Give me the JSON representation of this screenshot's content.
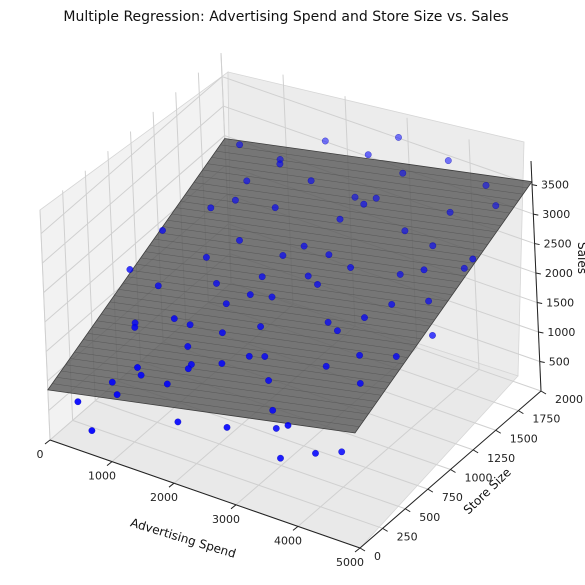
{
  "chart_data": {
    "type": "scatter",
    "title": "Multiple Regression: Advertising Spend and Store Size vs. Sales",
    "xlabel": "Advertising Spend",
    "ylabel": "Store Size",
    "zlabel": "Sales",
    "xlim": [
      0,
      5000
    ],
    "ylim": [
      0,
      2000
    ],
    "zlim": [
      0,
      3900
    ],
    "x_ticks": [
      "0",
      "1000",
      "2000",
      "3000",
      "4000",
      "5000"
    ],
    "y_ticks": [
      "0",
      "250",
      "500",
      "750",
      "1000",
      "1250",
      "1500",
      "1750",
      "2000"
    ],
    "z_ticks": [
      "500",
      "1000",
      "1500",
      "2000",
      "2500",
      "3000",
      "3500"
    ],
    "point_color": "#0000ff",
    "plane_color": "#555555",
    "regression_plane": {
      "corners": [
        {
          "x": 0,
          "y": 0,
          "z": 850
        },
        {
          "x": 5000,
          "y": 0,
          "z": 1950
        },
        {
          "x": 5000,
          "y": 2000,
          "z": 3550
        },
        {
          "x": 0,
          "y": 2000,
          "z": 2450
        }
      ]
    },
    "series": [
      {
        "points": [
          [
            300,
            120,
            600
          ],
          [
            600,
            60,
            300
          ],
          [
            900,
            150,
            900
          ],
          [
            1100,
            250,
            1300
          ],
          [
            1000,
            350,
            1000
          ],
          [
            700,
            500,
            1500
          ],
          [
            1200,
            600,
            1700
          ],
          [
            1500,
            300,
            1100
          ],
          [
            1300,
            700,
            1500
          ],
          [
            1700,
            400,
            1300
          ],
          [
            1900,
            650,
            1650
          ],
          [
            2100,
            500,
            1400
          ],
          [
            2300,
            800,
            1700
          ],
          [
            2000,
            900,
            2000
          ],
          [
            2500,
            700,
            1400
          ],
          [
            2700,
            600,
            1200
          ],
          [
            2900,
            500,
            900
          ],
          [
            3100,
            400,
            800
          ],
          [
            3300,
            300,
            500
          ],
          [
            3600,
            200,
            1300
          ],
          [
            3800,
            350,
            700
          ],
          [
            4000,
            500,
            600
          ],
          [
            800,
            1300,
            2500
          ],
          [
            1100,
            1500,
            2800
          ],
          [
            1400,
            1200,
            2300
          ],
          [
            1700,
            1400,
            2700
          ],
          [
            2000,
            1600,
            3000
          ],
          [
            2300,
            1300,
            2400
          ],
          [
            2600,
            1500,
            2700
          ],
          [
            2900,
            1700,
            2900
          ],
          [
            3200,
            1800,
            3300
          ],
          [
            3500,
            1600,
            2700
          ],
          [
            3800,
            1900,
            3600
          ],
          [
            4100,
            1700,
            3100
          ],
          [
            4400,
            1900,
            3400
          ],
          [
            4700,
            1800,
            3300
          ],
          [
            4600,
            1500,
            2600
          ],
          [
            4300,
            1300,
            2200
          ],
          [
            4000,
            1100,
            2300
          ],
          [
            3700,
            1000,
            2100
          ],
          [
            3400,
            900,
            1900
          ],
          [
            3100,
            1000,
            1800
          ],
          [
            2800,
            1100,
            2200
          ],
          [
            2500,
            1200,
            2100
          ],
          [
            2200,
            1000,
            1900
          ],
          [
            1900,
            1100,
            2000
          ],
          [
            1600,
            900,
            1700
          ],
          [
            1300,
            1000,
            1800
          ],
          [
            1000,
            1100,
            2000
          ],
          [
            500,
            900,
            1600
          ],
          [
            400,
            700,
            1200
          ],
          [
            200,
            800,
            1900
          ],
          [
            300,
            1100,
            2200
          ],
          [
            700,
            1700,
            3000
          ],
          [
            1200,
            1800,
            2800
          ],
          [
            1800,
            1900,
            3200
          ],
          [
            2400,
            1800,
            2600
          ],
          [
            3000,
            1900,
            3700
          ],
          [
            4800,
            1000,
            2200
          ],
          [
            4500,
            800,
            2000
          ],
          [
            4200,
            600,
            1700
          ],
          [
            3900,
            800,
            1800
          ],
          [
            3500,
            700,
            1600
          ],
          [
            3200,
            1200,
            2500
          ],
          [
            2700,
            1300,
            2400
          ],
          [
            2100,
            1200,
            2300
          ],
          [
            1500,
            1600,
            3100
          ],
          [
            900,
            1500,
            2400
          ],
          [
            4900,
            1400,
            3000
          ],
          [
            4400,
            1200,
            2900
          ],
          [
            600,
            300,
            800
          ],
          [
            1800,
            200,
            700
          ],
          [
            2600,
            200,
            900
          ],
          [
            1400,
            600,
            1300
          ],
          [
            3000,
            1500,
            3100
          ],
          [
            3700,
            1400,
            2300
          ],
          [
            4100,
            1500,
            2800
          ],
          [
            2800,
            1700,
            3600
          ],
          [
            1600,
            500,
            1200
          ],
          [
            2400,
            600,
            1500
          ]
        ]
      }
    ]
  }
}
